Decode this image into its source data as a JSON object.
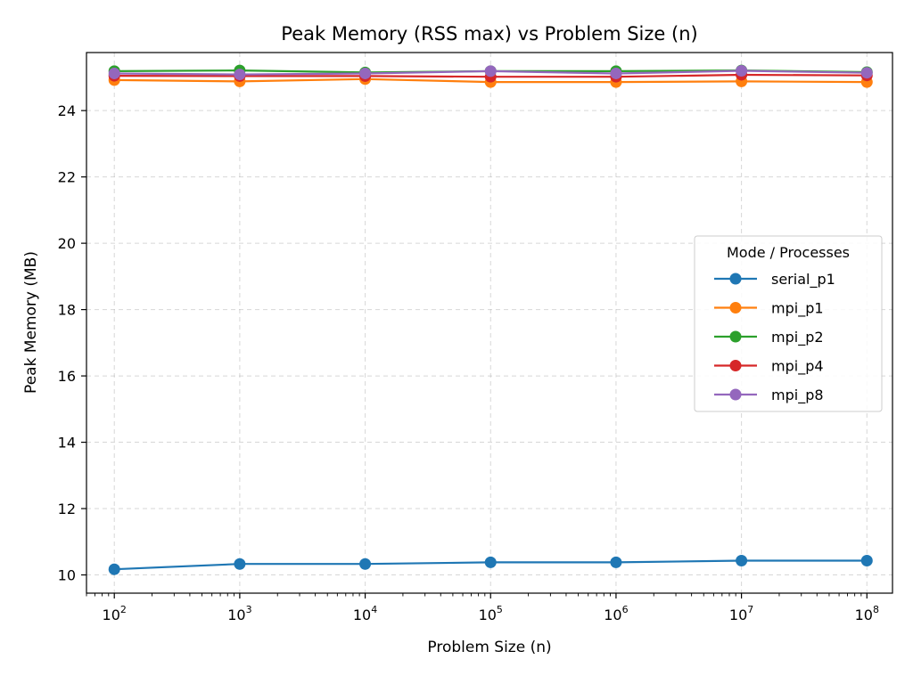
{
  "chart_data": {
    "type": "line",
    "title": "Peak Memory (RSS max) vs Problem Size (n)",
    "xlabel": "Problem Size (n)",
    "ylabel": "Peak Memory (MB)",
    "x_scale": "log",
    "x": [
      100,
      1000,
      10000,
      100000,
      1000000,
      10000000,
      100000000
    ],
    "x_ticks": [
      {
        "value": 100,
        "base": "10",
        "exp": "2"
      },
      {
        "value": 1000,
        "base": "10",
        "exp": "3"
      },
      {
        "value": 10000,
        "base": "10",
        "exp": "4"
      },
      {
        "value": 100000,
        "base": "10",
        "exp": "5"
      },
      {
        "value": 1000000,
        "base": "10",
        "exp": "6"
      },
      {
        "value": 10000000,
        "base": "10",
        "exp": "7"
      },
      {
        "value": 100000000,
        "base": "10",
        "exp": "8"
      }
    ],
    "xlim": [
      60,
      160000000
    ],
    "y_ticks": [
      "10",
      "12",
      "14",
      "16",
      "18",
      "20",
      "22",
      "24"
    ],
    "ylim": [
      9.45,
      25.75
    ],
    "grid": true,
    "legend_title": "Mode / Processes",
    "legend_position": "right",
    "series": [
      {
        "name": "serial_p1",
        "color": "#1f77b4",
        "values": [
          10.17,
          10.33,
          10.33,
          10.38,
          10.38,
          10.43,
          10.43
        ]
      },
      {
        "name": "mpi_p1",
        "color": "#ff7f0e",
        "values": [
          24.92,
          24.88,
          24.95,
          24.86,
          24.86,
          24.88,
          24.86
        ]
      },
      {
        "name": "mpi_p2",
        "color": "#2ca02c",
        "values": [
          25.19,
          25.21,
          25.15,
          25.19,
          25.19,
          25.21,
          25.16
        ]
      },
      {
        "name": "mpi_p4",
        "color": "#d62728",
        "values": [
          25.05,
          25.04,
          25.04,
          25.02,
          25.02,
          25.08,
          25.06
        ]
      },
      {
        "name": "mpi_p8",
        "color": "#9467bd",
        "values": [
          25.12,
          25.09,
          25.12,
          25.19,
          25.12,
          25.2,
          25.14
        ]
      }
    ]
  }
}
